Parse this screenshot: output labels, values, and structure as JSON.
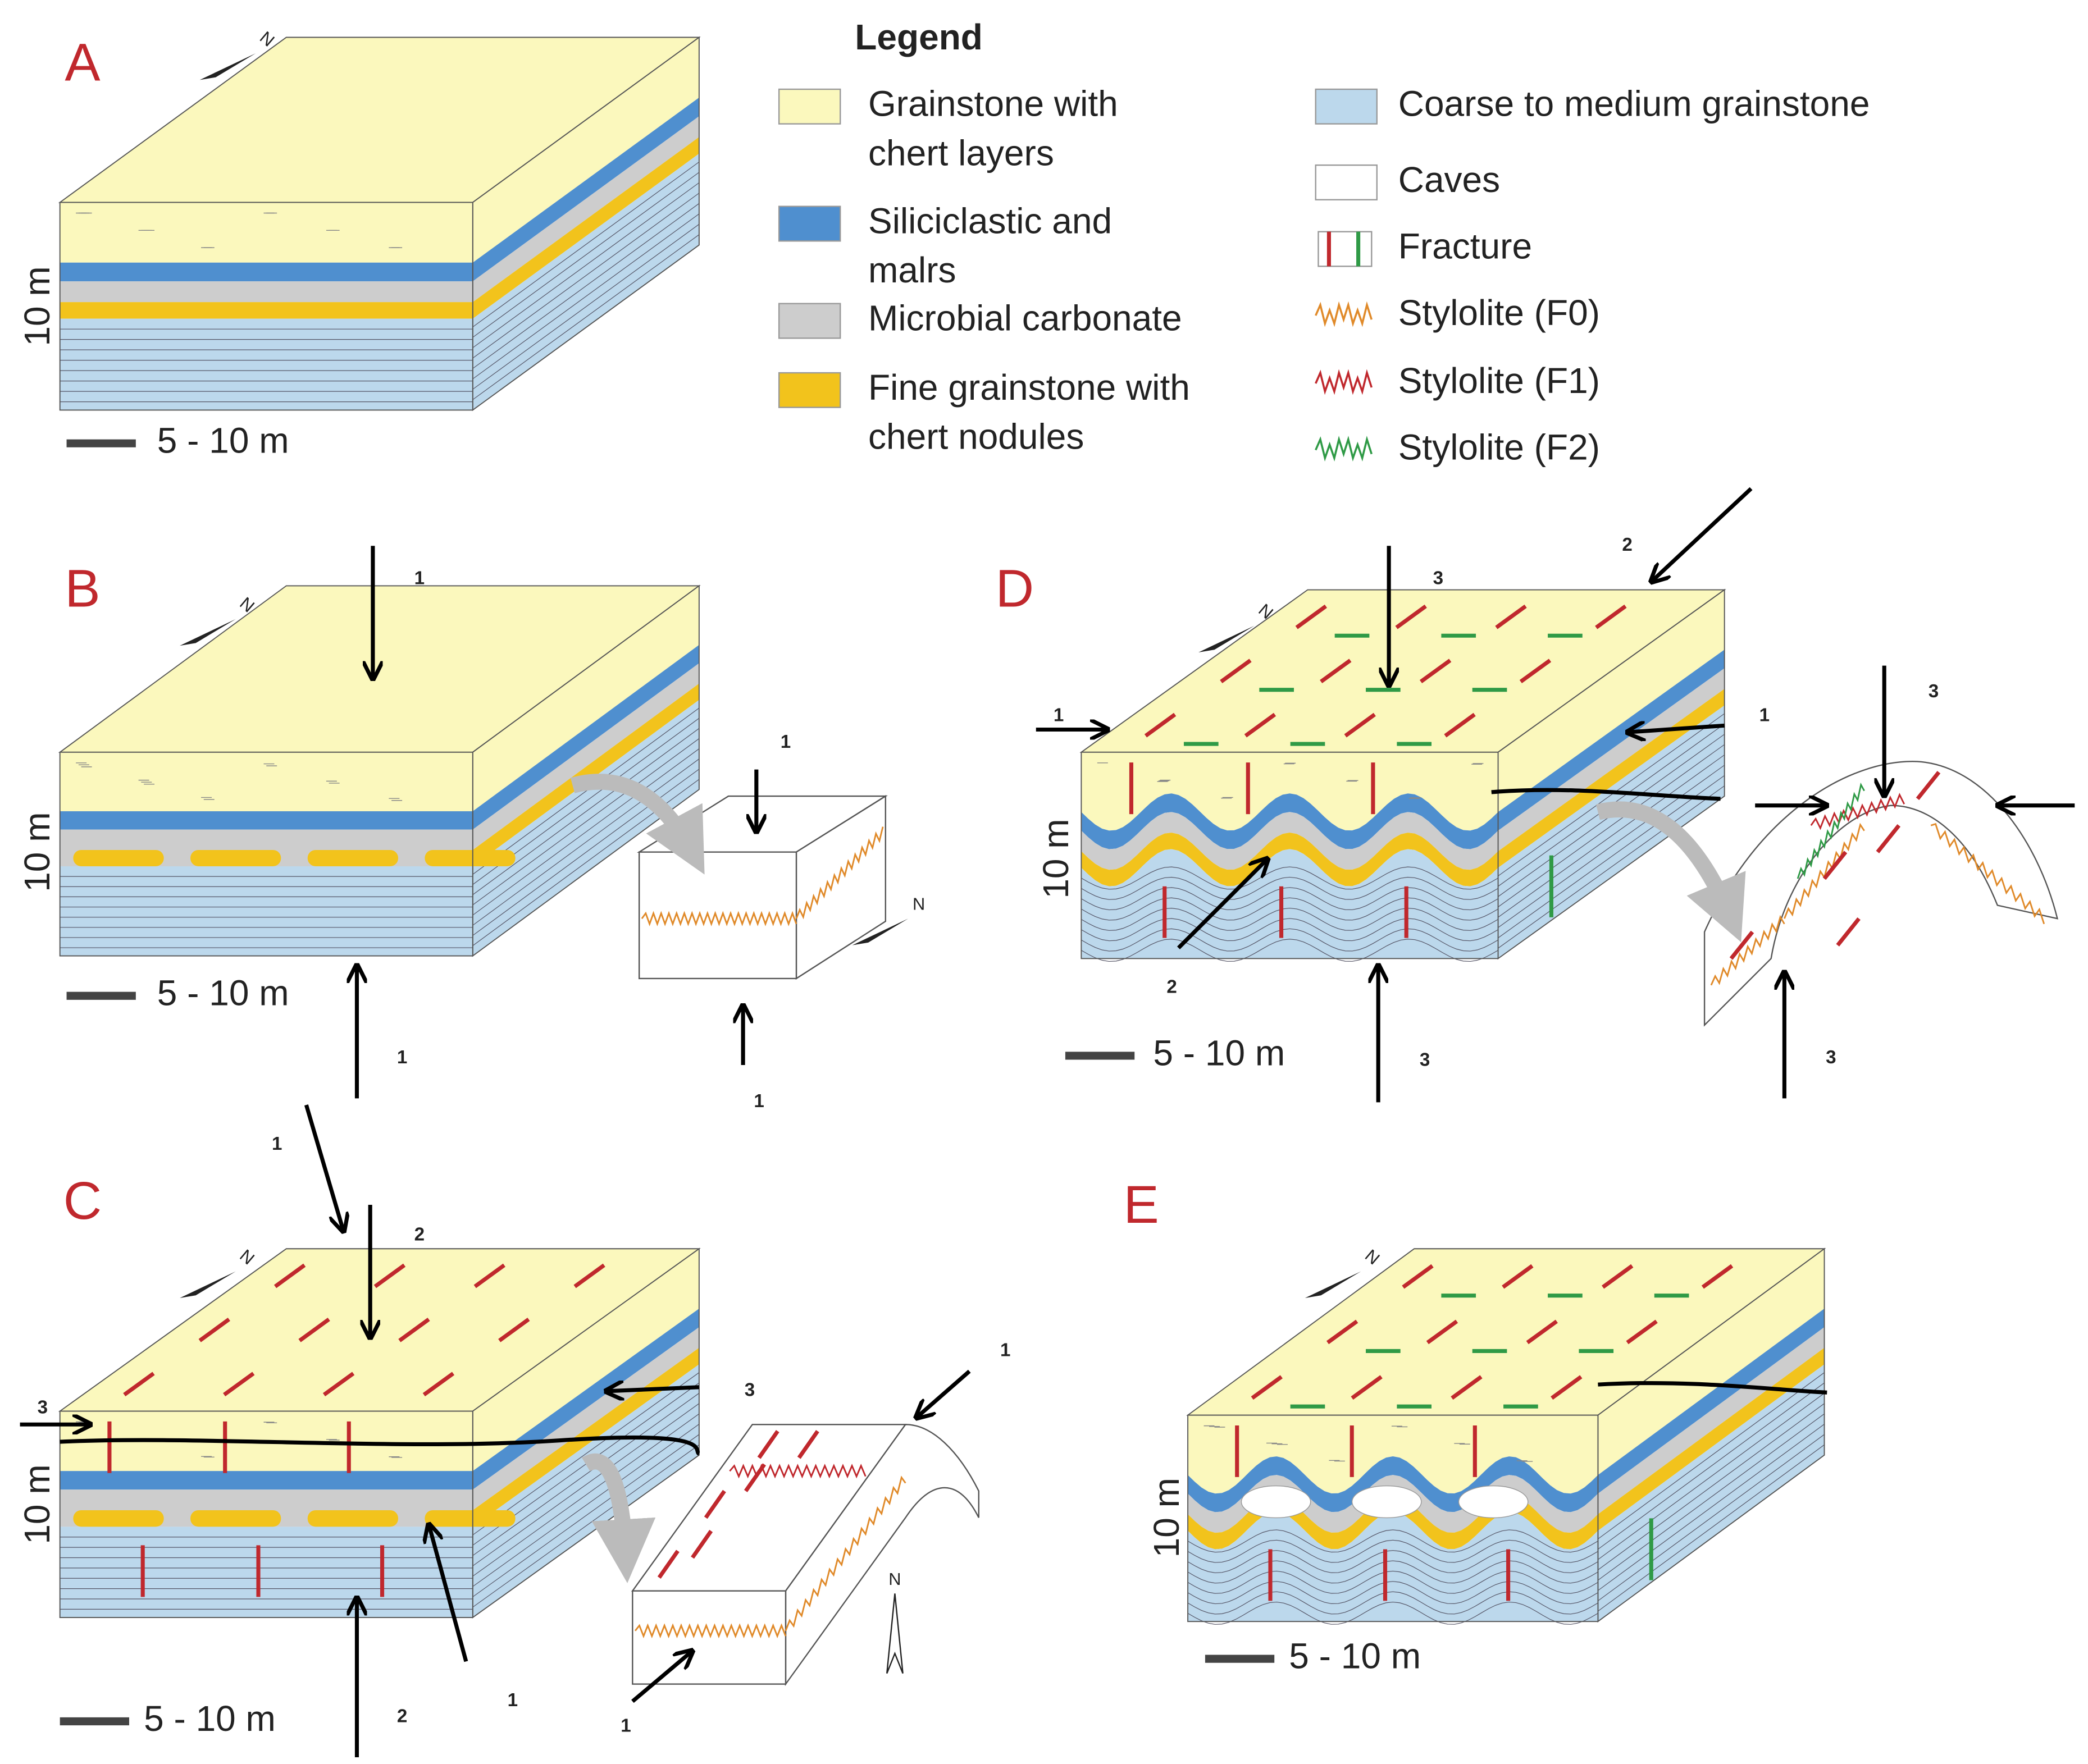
{
  "legend": {
    "title": "Legend",
    "items": [
      {
        "lines": [
          "Grainstone with",
          "chert layers"
        ]
      },
      {
        "lines": [
          "Siliciclastic and",
          "malrs"
        ]
      },
      {
        "lines": [
          "Microbial carbonate"
        ]
      },
      {
        "lines": [
          "Fine grainstone with",
          "chert nodules"
        ]
      },
      {
        "lines": [
          "Coarse to medium grainstone"
        ]
      },
      {
        "lines": [
          "Caves"
        ]
      },
      {
        "lines": [
          "Fracture"
        ]
      },
      {
        "lines": [
          "Stylolite (F0)"
        ]
      },
      {
        "lines": [
          "Stylolite (F1)"
        ]
      },
      {
        "lines": [
          "Stylolite (F2)"
        ]
      }
    ]
  },
  "panels": [
    {
      "label": "A",
      "north": "N",
      "height": "10 m",
      "scale": "5 - 10 m",
      "arrows": []
    },
    {
      "label": "B",
      "north": "N",
      "inset_north": "N",
      "height": "10 m",
      "scale": "5 - 10 m",
      "arrows": [
        "1",
        "1",
        "1",
        "1"
      ]
    },
    {
      "label": "C",
      "north": "N",
      "inset_north": "N",
      "height": "10 m",
      "scale": "5 - 10 m",
      "arrows": [
        "1",
        "2",
        "3",
        "3",
        "1",
        "1",
        "2",
        "1"
      ]
    },
    {
      "label": "D",
      "north": "N",
      "height": "10 m",
      "scale": "5 - 10 m",
      "arrows": [
        "3",
        "2",
        "1",
        "1",
        "2",
        "3",
        "3",
        "3"
      ]
    },
    {
      "label": "E",
      "north": "N",
      "height": "10 m",
      "scale": "5 - 10 m",
      "arrows": []
    }
  ]
}
